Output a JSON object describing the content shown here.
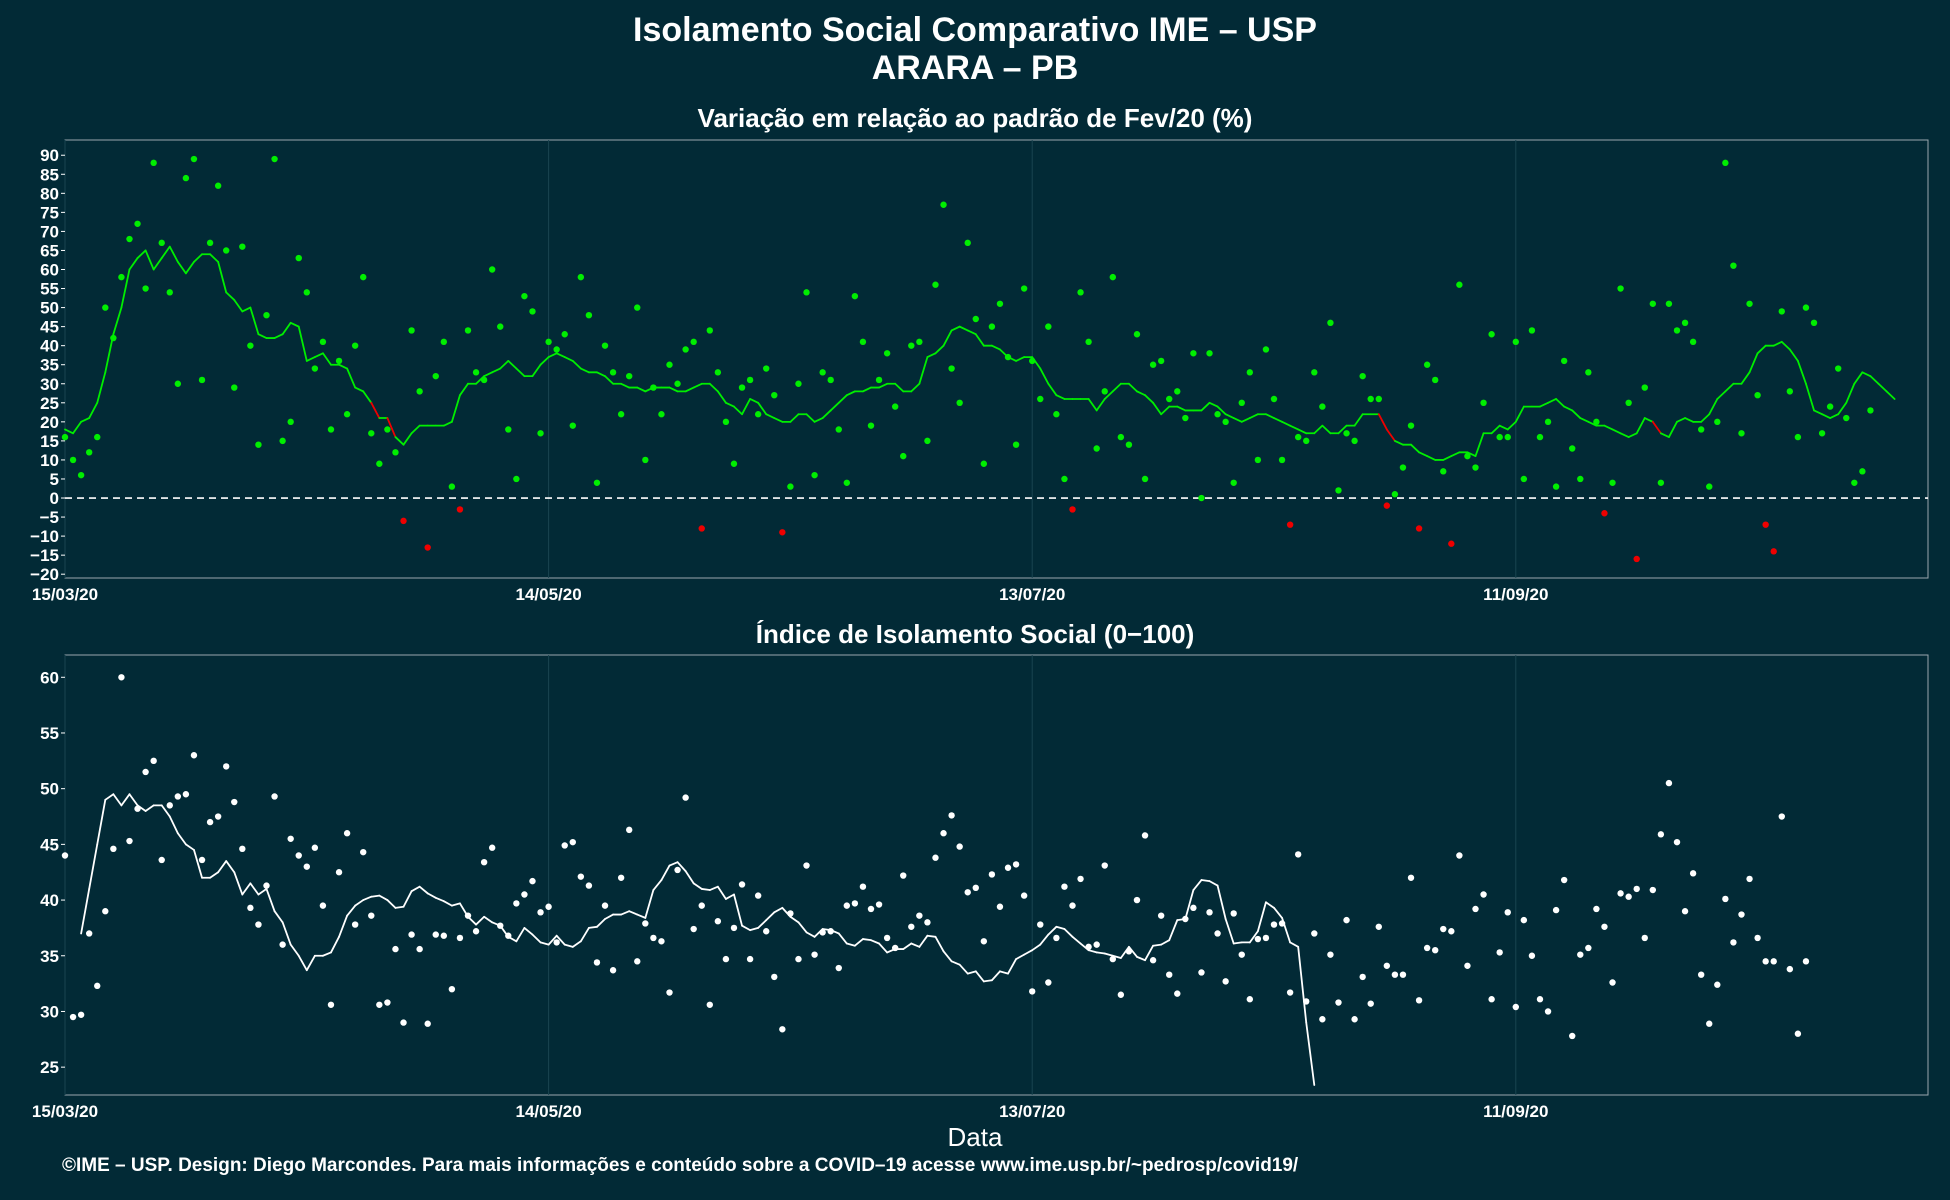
{
  "title_line1": "Isolamento Social Comparativo IME – USP",
  "title_line2": "ARARA – PB",
  "xaxis_title": "Data",
  "footer": "©IME – USP. Design: Diego Marcondes. Para mais informações e conteúdo sobre a COVID–19 acesse www.ime.usp.br/~pedrosp/covid19/",
  "colors": {
    "background": "#022a36",
    "positive": "#00ee00",
    "negative": "#ee0000",
    "index": "#ffffff",
    "zero_line": "#ffffff"
  },
  "chart_data": [
    {
      "type": "scatter",
      "title": "Variação em relação ao padrão de Fev/20 (%)",
      "x_ticks": [
        "15/03/20",
        "14/05/20",
        "13/07/20",
        "11/09/20"
      ],
      "y_ticks": [
        "90",
        "85",
        "80",
        "75",
        "70",
        "65",
        "60",
        "55",
        "50",
        "45",
        "40",
        "35",
        "30",
        "25",
        "20",
        "15",
        "10",
        "5",
        "0",
        "−5",
        "−10",
        "−15",
        "−20"
      ],
      "ylim": [
        -21,
        94
      ],
      "reference_line": 0,
      "x_start": "15/03/20",
      "series": [
        {
          "kind": "points",
          "values": [
            16,
            10,
            6,
            12,
            16,
            50,
            42,
            58,
            68,
            72,
            55,
            88,
            67,
            54,
            30,
            84,
            89,
            31,
            67,
            82,
            65,
            29,
            66,
            40,
            14,
            48,
            89,
            15,
            20,
            63,
            54,
            34,
            41,
            18,
            36,
            22,
            40,
            58,
            17,
            9,
            18,
            12,
            -6,
            44,
            28,
            -13,
            32,
            41,
            3,
            -3,
            44,
            33,
            31,
            60,
            45,
            18,
            5,
            53,
            49,
            17,
            41,
            39,
            43,
            19,
            58,
            48,
            4,
            40,
            33,
            22,
            32,
            50,
            10,
            29,
            22,
            35,
            30,
            39,
            41,
            -8,
            44,
            33,
            20,
            9,
            29,
            31,
            22,
            34,
            27,
            -9,
            3,
            30,
            54,
            6,
            33,
            31,
            18,
            4,
            53,
            41,
            19,
            31,
            38,
            24,
            11,
            40,
            41,
            15,
            56,
            77,
            34,
            25,
            67,
            47,
            9,
            45,
            51,
            37,
            14,
            55,
            36,
            26,
            45,
            22,
            5,
            -3,
            54,
            41,
            13,
            28,
            58,
            16,
            14,
            43,
            5,
            35,
            36,
            26,
            28,
            21,
            38,
            0,
            38,
            22,
            20,
            4,
            25,
            33,
            10,
            39,
            26,
            10,
            -7,
            16,
            15,
            33,
            24,
            46,
            2,
            17,
            15,
            32,
            26,
            26,
            -2,
            1,
            8,
            19,
            -8,
            35,
            31,
            7,
            -12,
            56,
            11,
            8,
            25,
            43,
            16,
            16,
            41,
            5,
            44,
            16,
            20,
            3,
            36,
            13,
            5,
            33,
            20,
            -4,
            4,
            55,
            25,
            -16,
            29,
            51,
            4,
            51,
            44,
            46,
            41,
            18,
            3,
            20,
            88,
            61,
            17,
            51,
            27,
            -7,
            -14,
            49,
            28,
            16,
            50,
            46,
            17,
            24,
            34,
            21,
            4,
            7,
            23
          ]
        },
        {
          "kind": "moving_average",
          "values": [
            18,
            17,
            20,
            21,
            25,
            33,
            43,
            50,
            60,
            63,
            65,
            60,
            63,
            66,
            62,
            59,
            62,
            64,
            64,
            62,
            54,
            52,
            49,
            50,
            43,
            42,
            42,
            43,
            46,
            45,
            36,
            37,
            38,
            35,
            35,
            34,
            29,
            28,
            25,
            21,
            21,
            16,
            14,
            17,
            19,
            19,
            19,
            19,
            20,
            27,
            30,
            30,
            32,
            33,
            34,
            36,
            34,
            32,
            32,
            35,
            37,
            38,
            37,
            36,
            34,
            33,
            33,
            32,
            30,
            30,
            29,
            29,
            28,
            29,
            29,
            29,
            28,
            28,
            29,
            30,
            30,
            28,
            25,
            24,
            22,
            26,
            25,
            22,
            21,
            20,
            20,
            22,
            22,
            20,
            21,
            23,
            25,
            27,
            28,
            28,
            29,
            29,
            30,
            30,
            28,
            28,
            30,
            37,
            38,
            40,
            44,
            45,
            44,
            43,
            40,
            40,
            39,
            37,
            36,
            37,
            37,
            34,
            30,
            27,
            26,
            26,
            26,
            26,
            23,
            26,
            28,
            30,
            30,
            28,
            27,
            25,
            22,
            24,
            24,
            23,
            23,
            23,
            25,
            24,
            22,
            21,
            20,
            21,
            22,
            22,
            21,
            20,
            19,
            18,
            17,
            17,
            19,
            17,
            17,
            19,
            19,
            22,
            22,
            22,
            18,
            15,
            14,
            14,
            12,
            11,
            10,
            10,
            11,
            12,
            12,
            11,
            17,
            17,
            19,
            18,
            20,
            24,
            24,
            24,
            25,
            26,
            24,
            23,
            21,
            20,
            19,
            19,
            18,
            17,
            16,
            17,
            21,
            20,
            17,
            16,
            20,
            21,
            20,
            20,
            22,
            26,
            28,
            30,
            30,
            33,
            38,
            40,
            40,
            41,
            39,
            36,
            30,
            23,
            22,
            21,
            22,
            25,
            30,
            33,
            32,
            30,
            28,
            26
          ]
        }
      ]
    },
    {
      "type": "scatter",
      "title": "Índice de Isolamento Social (0−100)",
      "x_ticks": [
        "15/03/20",
        "14/05/20",
        "13/07/20",
        "11/09/20"
      ],
      "y_ticks": [
        "60",
        "55",
        "50",
        "45",
        "40",
        "35",
        "30",
        "25"
      ],
      "ylim": [
        22.5,
        62
      ],
      "x_start": "15/03/20",
      "series": [
        {
          "kind": "points",
          "values": [
            44,
            29.5,
            29.7,
            37,
            32.3,
            39,
            44.6,
            60,
            45.3,
            48.2,
            51.5,
            52.5,
            43.6,
            48.5,
            49.3,
            49.5,
            53,
            43.6,
            47,
            47.5,
            52,
            48.8,
            44.6,
            39.3,
            37.8,
            41.3,
            49.3,
            36,
            45.5,
            44,
            43,
            44.7,
            39.5,
            30.6,
            42.5,
            46,
            37.8,
            44.3,
            38.6,
            30.6,
            30.8,
            35.6,
            29,
            36.9,
            35.6,
            28.9,
            36.9,
            36.8,
            32,
            36.6,
            38.6,
            37.2,
            43.4,
            44.7,
            37.7,
            36.8,
            39.7,
            40.5,
            41.7,
            38.9,
            39.4,
            36.2,
            44.9,
            45.2,
            42.1,
            41.3,
            34.4,
            39.5,
            33.7,
            42,
            46.3,
            34.5,
            37.9,
            36.6,
            36.3,
            31.7,
            42.7,
            49.2,
            37.4,
            39.5,
            30.6,
            38.1,
            34.7,
            37.5,
            41.4,
            34.7,
            40.4,
            37.2,
            33.1,
            28.4,
            38.8,
            34.7,
            43.1,
            35.1,
            37.1,
            37.2,
            33.9,
            39.5,
            39.7,
            41.2,
            39.2,
            39.6,
            36.6,
            35.7,
            42.2,
            37.6,
            38.6,
            38,
            43.8,
            46,
            47.6,
            44.8,
            40.7,
            41.1,
            36.3,
            42.3,
            39.4,
            42.9,
            43.2,
            40.4,
            31.8,
            37.8,
            32.6,
            36.6,
            41.2,
            39.5,
            41.9,
            35.8,
            36,
            43.1,
            34.7,
            31.5,
            35.4,
            40,
            45.8,
            34.6,
            38.6,
            33.3,
            31.6,
            38.3,
            39.3,
            33.5,
            38.9,
            37,
            32.7,
            38.8,
            35.1,
            31.1,
            36.5,
            36.6,
            37.8,
            37.9,
            31.7,
            44.1,
            30.9,
            37,
            29.3,
            35.1,
            30.8,
            38.2,
            29.3,
            33.1,
            30.7,
            37.6,
            34.1,
            33.3,
            33.3,
            42,
            31,
            35.7,
            35.5,
            37.4,
            37.2,
            44,
            34.1,
            39.2,
            40.5,
            31.1,
            35.3,
            38.9,
            30.4,
            38.2,
            35,
            31.1,
            30,
            39.1,
            41.8,
            27.8,
            35.1,
            35.7,
            39.2,
            37.6,
            32.6,
            40.6,
            40.3,
            41,
            36.6,
            40.9,
            45.9,
            50.5,
            45.2,
            39,
            42.4,
            33.3,
            28.9,
            32.4,
            40.1,
            36.2,
            38.7,
            41.9,
            36.6,
            34.5,
            34.5,
            47.5,
            33.8,
            28,
            34.5
          ]
        },
        {
          "kind": "moving_average",
          "values": [
            37,
            41,
            45,
            49,
            49.5,
            48.5,
            49.5,
            48.5,
            48,
            48.5,
            48.5,
            47.5,
            46,
            45,
            44.5,
            42,
            42,
            42.5,
            43.5,
            42.5,
            40.5,
            41.5,
            40.5,
            41,
            39,
            38,
            36,
            35,
            33.7,
            35,
            35,
            35.3,
            36.7,
            38.6,
            39.5,
            40,
            40.3,
            40.4,
            40,
            39.3,
            39.4,
            40.8,
            41.2,
            40.6,
            40.2,
            39.9,
            39.5,
            39.7,
            38.5,
            37.8,
            38.5,
            38,
            37.7,
            36.7,
            36.3,
            37.5,
            36.9,
            36.2,
            36,
            36.8,
            36,
            35.8,
            36.3,
            37.5,
            37.6,
            38.3,
            38.7,
            38.7,
            39,
            38.7,
            38.4,
            40.9,
            41.8,
            43.1,
            43.4,
            42.6,
            41.5,
            41,
            40.9,
            41.2,
            40.1,
            40.5,
            37.7,
            37.3,
            37.5,
            38.2,
            38.9,
            39.3,
            38.5,
            38,
            37.1,
            36.7,
            37.4,
            37.3,
            37,
            36.1,
            35.9,
            36.5,
            36.4,
            36.1,
            35.3,
            35.6,
            35.6,
            36.1,
            35.8,
            36.8,
            36.7,
            35.4,
            34.5,
            34.2,
            33.4,
            33.6,
            32.7,
            32.8,
            33.6,
            33.4,
            34.7,
            35.1,
            35.5,
            36,
            36.9,
            37.6,
            37.4,
            36.7,
            36.1,
            35.5,
            35.3,
            35.2,
            35,
            34.8,
            35.8,
            34.9,
            34.6,
            35.9,
            36,
            36.4,
            38.2,
            38.3,
            40.9,
            41.8,
            41.7,
            41.3,
            38.3,
            36.1,
            36.2,
            36.2,
            37.2,
            39.8,
            39.3,
            38.4,
            36.2,
            35.8,
            29,
            23.4
          ]
        }
      ]
    }
  ]
}
